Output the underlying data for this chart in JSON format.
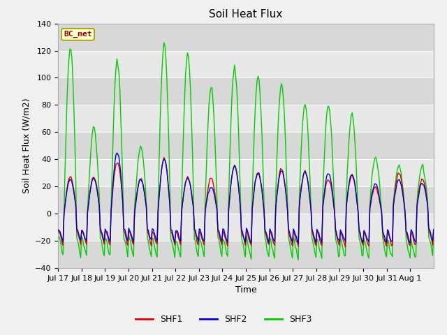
{
  "title": "Soil Heat Flux",
  "ylabel": "Soil Heat Flux (W/m2)",
  "xlabel": "Time",
  "ylim": [
    -40,
    140
  ],
  "yticks": [
    -40,
    -20,
    0,
    20,
    40,
    60,
    80,
    100,
    120,
    140
  ],
  "xtick_labels": [
    "Jul 17",
    "Jul 18",
    "Jul 19",
    "Jul 20",
    "Jul 21",
    "Jul 22",
    "Jul 23",
    "Jul 24",
    "Jul 25",
    "Jul 26",
    "Jul 27",
    "Jul 28",
    "Jul 29",
    "Jul 30",
    "Jul 31",
    "Aug 1"
  ],
  "legend_label": "BC_met",
  "line_colors": {
    "SHF1": "#dd0000",
    "SHF2": "#0000cc",
    "SHF3": "#00cc00"
  },
  "line_widths": {
    "SHF1": 1.0,
    "SHF2": 1.0,
    "SHF3": 1.0
  },
  "bg_color": "#f0f0f0",
  "plot_bg_color": "#e8e8e8",
  "band_light": "#e8e8e8",
  "band_dark": "#d8d8d8",
  "title_fontsize": 11,
  "label_fontsize": 9,
  "tick_fontsize": 8,
  "peaks_shf1": [
    27,
    27,
    38,
    26,
    41,
    27,
    26,
    35,
    30,
    33,
    31,
    25,
    28,
    19,
    30,
    25
  ],
  "peaks_shf2": [
    25,
    26,
    45,
    25,
    40,
    26,
    20,
    35,
    30,
    32,
    31,
    30,
    29,
    22,
    25,
    22
  ],
  "peaks_shf3": [
    122,
    63,
    113,
    49,
    126,
    118,
    93,
    109,
    101,
    95,
    80,
    80,
    73,
    41,
    35,
    35
  ],
  "trough_shf1": -18,
  "trough_shf2": -16,
  "trough_shf3": -25
}
